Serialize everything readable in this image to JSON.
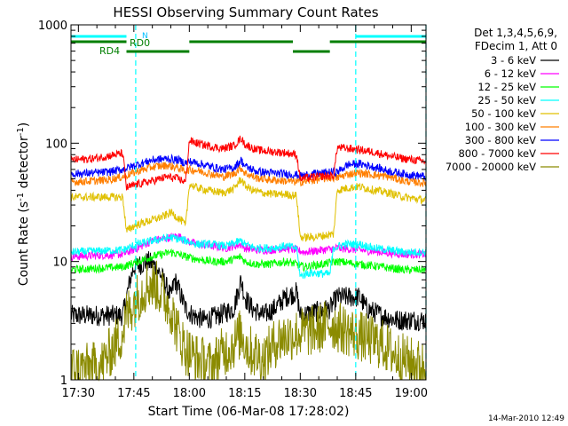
{
  "chart_data": {
    "type": "line",
    "title": "HESSI Observing Summary Count Rates",
    "xlabel": "Start Time (06-Mar-08 17:28:02)",
    "ylabel_main": "Count Rate (s",
    "ylabel_sup1": "-1",
    "ylabel_mid": " detector",
    "ylabel_sup2": "-1",
    "ylabel_end": ")",
    "ylog": true,
    "ylim": [
      1,
      1000
    ],
    "xlim_minutes": [
      0,
      96
    ],
    "xticks": [
      {
        "label": "17:30",
        "minute": 2
      },
      {
        "label": "17:45",
        "minute": 17
      },
      {
        "label": "18:00",
        "minute": 32
      },
      {
        "label": "18:15",
        "minute": 47
      },
      {
        "label": "18:30",
        "minute": 62
      },
      {
        "label": "18:45",
        "minute": 77
      },
      {
        "label": "19:00",
        "minute": 92
      }
    ],
    "yticks": [
      {
        "label": "1",
        "value": 1
      },
      {
        "label": "10",
        "value": 10
      },
      {
        "label": "100",
        "value": 100
      },
      {
        "label": "1000",
        "value": 1000
      }
    ],
    "legend_header": [
      "Det 1,3,4,5,6,9,",
      "FDecim 1, Att 0"
    ],
    "series": [
      {
        "name": "3 - 6 keV",
        "color": "#000000",
        "points": [
          [
            0,
            3.5
          ],
          [
            14,
            3.5
          ],
          [
            15,
            5
          ],
          [
            16,
            7
          ],
          [
            17,
            9
          ],
          [
            19,
            9.5
          ],
          [
            21,
            10
          ],
          [
            23,
            9
          ],
          [
            25,
            7
          ],
          [
            27,
            5
          ],
          [
            28,
            7
          ],
          [
            29,
            6
          ],
          [
            31,
            4
          ],
          [
            33,
            3.5
          ],
          [
            36,
            3.2
          ],
          [
            40,
            3.5
          ],
          [
            44,
            4
          ],
          [
            46,
            7
          ],
          [
            47,
            5
          ],
          [
            49,
            4
          ],
          [
            52,
            3.5
          ],
          [
            55,
            4
          ],
          [
            58,
            5
          ],
          [
            61,
            5.5
          ],
          [
            62,
            3.5
          ],
          [
            70,
            4
          ],
          [
            72,
            5
          ],
          [
            78,
            5
          ],
          [
            80,
            4
          ],
          [
            84,
            3.5
          ],
          [
            88,
            3.2
          ],
          [
            96,
            3.2
          ]
        ]
      },
      {
        "name": "6 - 12 keV",
        "color": "#ff00ff",
        "points": [
          [
            0,
            11
          ],
          [
            14,
            11.5
          ],
          [
            18,
            13
          ],
          [
            22,
            15
          ],
          [
            27,
            16
          ],
          [
            29,
            16.5
          ],
          [
            31,
            15
          ],
          [
            34,
            14
          ],
          [
            38,
            13.5
          ],
          [
            42,
            13
          ],
          [
            46,
            14
          ],
          [
            47,
            13
          ],
          [
            50,
            12.5
          ],
          [
            54,
            12.5
          ],
          [
            58,
            13
          ],
          [
            61,
            12.5
          ],
          [
            63,
            12
          ],
          [
            68,
            12.5
          ],
          [
            72,
            13
          ],
          [
            78,
            12.5
          ],
          [
            84,
            12
          ],
          [
            90,
            11.5
          ],
          [
            96,
            11.5
          ]
        ]
      },
      {
        "name": "12 - 25 keV",
        "color": "#00ff00",
        "points": [
          [
            0,
            8.5
          ],
          [
            14,
            9
          ],
          [
            18,
            10
          ],
          [
            22,
            11
          ],
          [
            27,
            12
          ],
          [
            31,
            11
          ],
          [
            34,
            10.5
          ],
          [
            38,
            10
          ],
          [
            42,
            10
          ],
          [
            46,
            11
          ],
          [
            47,
            10
          ],
          [
            50,
            9.5
          ],
          [
            54,
            9.5
          ],
          [
            58,
            10
          ],
          [
            61,
            9.5
          ],
          [
            63,
            9
          ],
          [
            68,
            9.5
          ],
          [
            72,
            10
          ],
          [
            78,
            9.5
          ],
          [
            84,
            9
          ],
          [
            90,
            8.5
          ],
          [
            96,
            8.5
          ]
        ]
      },
      {
        "name": "25 - 50 keV",
        "color": "#00ffff",
        "points": [
          [
            0,
            12
          ],
          [
            14,
            12.5
          ],
          [
            18,
            14
          ],
          [
            22,
            15
          ],
          [
            27,
            16
          ],
          [
            31,
            15
          ],
          [
            34,
            14
          ],
          [
            38,
            14
          ],
          [
            42,
            13.5
          ],
          [
            46,
            15
          ],
          [
            47,
            14
          ],
          [
            50,
            13
          ],
          [
            54,
            13
          ],
          [
            58,
            13.5
          ],
          [
            61,
            13
          ],
          [
            62,
            7.5
          ],
          [
            64,
            8
          ],
          [
            66,
            8
          ],
          [
            70,
            7.8
          ],
          [
            71,
            13
          ],
          [
            74,
            14
          ],
          [
            78,
            14
          ],
          [
            82,
            13
          ],
          [
            86,
            12.5
          ],
          [
            90,
            12
          ],
          [
            96,
            12
          ]
        ]
      },
      {
        "name": "50 - 100 keV",
        "color": "#e0c000",
        "points": [
          [
            0,
            35
          ],
          [
            14,
            35
          ],
          [
            15,
            18
          ],
          [
            17,
            20
          ],
          [
            19,
            21
          ],
          [
            21,
            22
          ],
          [
            23,
            23
          ],
          [
            25,
            24
          ],
          [
            27,
            26
          ],
          [
            30,
            22
          ],
          [
            31,
            20
          ],
          [
            32,
            45
          ],
          [
            34,
            42
          ],
          [
            37,
            40
          ],
          [
            41,
            38
          ],
          [
            44,
            41
          ],
          [
            46,
            50
          ],
          [
            47,
            44
          ],
          [
            49,
            40
          ],
          [
            52,
            38
          ],
          [
            55,
            37
          ],
          [
            58,
            37
          ],
          [
            61,
            36
          ],
          [
            62,
            16
          ],
          [
            65,
            16
          ],
          [
            68,
            16.5
          ],
          [
            71,
            17
          ],
          [
            72,
            40
          ],
          [
            75,
            42
          ],
          [
            78,
            43
          ],
          [
            82,
            40
          ],
          [
            86,
            38
          ],
          [
            90,
            35
          ],
          [
            96,
            33
          ]
        ]
      },
      {
        "name": "100 - 300 keV",
        "color": "#ff7f00",
        "points": [
          [
            0,
            47
          ],
          [
            6,
            48
          ],
          [
            10,
            49
          ],
          [
            14,
            52
          ],
          [
            18,
            58
          ],
          [
            22,
            63
          ],
          [
            26,
            65
          ],
          [
            29,
            62
          ],
          [
            31,
            58
          ],
          [
            32,
            60
          ],
          [
            35,
            58
          ],
          [
            38,
            55
          ],
          [
            41,
            52
          ],
          [
            44,
            55
          ],
          [
            46,
            62
          ],
          [
            47,
            56
          ],
          [
            50,
            51
          ],
          [
            54,
            49
          ],
          [
            58,
            48
          ],
          [
            61,
            47
          ],
          [
            62,
            47
          ],
          [
            66,
            49
          ],
          [
            70,
            51
          ],
          [
            72,
            51
          ],
          [
            75,
            55
          ],
          [
            78,
            56
          ],
          [
            82,
            54
          ],
          [
            86,
            52
          ],
          [
            90,
            48
          ],
          [
            96,
            46
          ]
        ]
      },
      {
        "name": "300 - 800 keV",
        "color": "#0000ff",
        "points": [
          [
            0,
            55
          ],
          [
            6,
            56
          ],
          [
            10,
            57
          ],
          [
            14,
            60
          ],
          [
            18,
            66
          ],
          [
            22,
            72
          ],
          [
            26,
            74
          ],
          [
            29,
            72
          ],
          [
            31,
            68
          ],
          [
            32,
            70
          ],
          [
            35,
            67
          ],
          [
            38,
            63
          ],
          [
            41,
            60
          ],
          [
            44,
            62
          ],
          [
            46,
            72
          ],
          [
            47,
            64
          ],
          [
            50,
            58
          ],
          [
            54,
            56
          ],
          [
            58,
            55
          ],
          [
            61,
            54
          ],
          [
            62,
            53
          ],
          [
            66,
            55
          ],
          [
            70,
            57
          ],
          [
            72,
            57
          ],
          [
            75,
            66
          ],
          [
            78,
            67
          ],
          [
            82,
            63
          ],
          [
            86,
            58
          ],
          [
            90,
            55
          ],
          [
            96,
            52
          ]
        ]
      },
      {
        "name": "800 - 7000 keV",
        "color": "#ff0000",
        "points": [
          [
            0,
            72
          ],
          [
            6,
            74
          ],
          [
            10,
            78
          ],
          [
            14,
            82
          ],
          [
            15,
            42
          ],
          [
            18,
            45
          ],
          [
            22,
            48
          ],
          [
            26,
            52
          ],
          [
            29,
            50
          ],
          [
            31,
            47
          ],
          [
            32,
            105
          ],
          [
            34,
            100
          ],
          [
            37,
            95
          ],
          [
            41,
            90
          ],
          [
            44,
            95
          ],
          [
            46,
            110
          ],
          [
            47,
            98
          ],
          [
            50,
            88
          ],
          [
            54,
            85
          ],
          [
            58,
            83
          ],
          [
            61,
            80
          ],
          [
            62,
            50
          ],
          [
            66,
            52
          ],
          [
            70,
            53
          ],
          [
            71,
            53
          ],
          [
            72,
            92
          ],
          [
            75,
            90
          ],
          [
            78,
            88
          ],
          [
            82,
            84
          ],
          [
            86,
            78
          ],
          [
            90,
            74
          ],
          [
            96,
            70
          ]
        ]
      },
      {
        "name": "7000 - 20000 keV",
        "color": "#8b8b00",
        "points": [
          [
            0,
            1.2
          ],
          [
            8,
            1.3
          ],
          [
            12,
            2
          ],
          [
            14,
            2.5
          ],
          [
            15,
            3.5
          ],
          [
            17,
            4.5
          ],
          [
            19,
            5.5
          ],
          [
            21,
            6.5
          ],
          [
            23,
            6.3
          ],
          [
            25,
            5
          ],
          [
            27,
            4
          ],
          [
            29,
            2.5
          ],
          [
            31,
            1.8
          ],
          [
            34,
            1.5
          ],
          [
            38,
            1.3
          ],
          [
            40,
            1.6
          ],
          [
            44,
            2
          ],
          [
            46,
            2.5
          ],
          [
            48,
            1.8
          ],
          [
            52,
            1.5
          ],
          [
            56,
            2.2
          ],
          [
            60,
            2.4
          ],
          [
            62,
            2.5
          ],
          [
            66,
            2.6
          ],
          [
            70,
            3
          ],
          [
            72,
            2.8
          ],
          [
            76,
            2.5
          ],
          [
            80,
            2.2
          ],
          [
            84,
            2
          ],
          [
            88,
            1.6
          ],
          [
            92,
            1.4
          ],
          [
            96,
            1.3
          ]
        ]
      }
    ],
    "top_bars": [
      {
        "label": "N",
        "color": "#00ffff",
        "segments": [
          [
            0,
            15
          ],
          [
            77,
            96
          ]
        ]
      },
      {
        "label": "RD0",
        "color": "#007f00",
        "segments": [
          [
            0,
            15
          ],
          [
            32,
            60
          ],
          [
            70,
            96
          ]
        ]
      },
      {
        "label": "RD4",
        "color": "#007f00",
        "segments": [
          [
            15,
            32
          ],
          [
            60,
            70
          ]
        ]
      }
    ],
    "vlines_minutes": [
      17.5,
      77,
      96
    ]
  },
  "footer": {
    "timestamp": "14-Mar-2010 12:49"
  }
}
